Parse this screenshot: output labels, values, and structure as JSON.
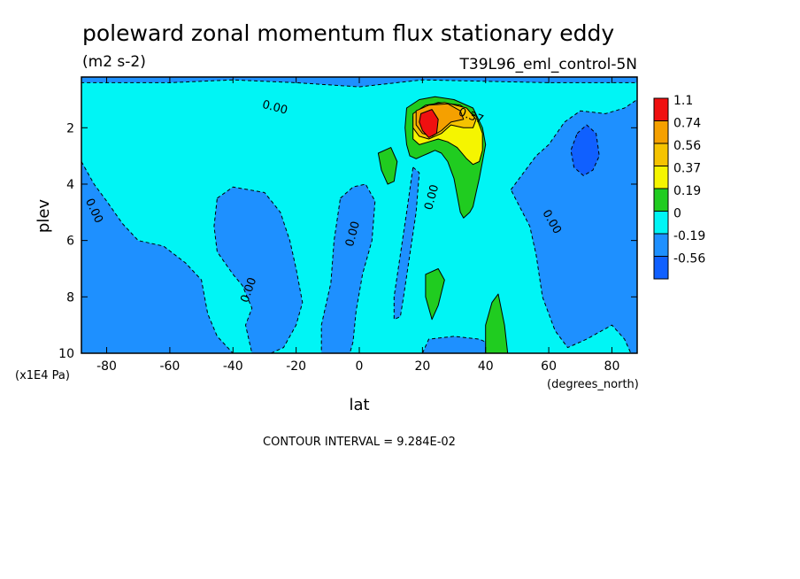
{
  "chart_data": {
    "type": "contour",
    "title": "poleward zonal momentum flux stationary eddy",
    "units": "(m2 s-2)",
    "experiment": "T39L96_eml_control-5N",
    "xlabel": "lat",
    "xunits": "(degrees_north)",
    "ylabel": "plev",
    "yunits": "(x1E4 Pa)",
    "xlim": [
      -88,
      88
    ],
    "ylim": [
      10,
      0.2
    ],
    "x_ticks": [
      {
        "value": -80,
        "label": "-80"
      },
      {
        "value": -60,
        "label": "-60"
      },
      {
        "value": -40,
        "label": "-40"
      },
      {
        "value": -20,
        "label": "-20"
      },
      {
        "value": 0,
        "label": "0"
      },
      {
        "value": 20,
        "label": "20"
      },
      {
        "value": 40,
        "label": "40"
      },
      {
        "value": 60,
        "label": "60"
      },
      {
        "value": 80,
        "label": "80"
      }
    ],
    "y_ticks": [
      {
        "value": 2,
        "label": "2"
      },
      {
        "value": 4,
        "label": "4"
      },
      {
        "value": 6,
        "label": "6"
      },
      {
        "value": 8,
        "label": "8"
      },
      {
        "value": 10,
        "label": "10"
      }
    ],
    "contour_interval_text": "CONTOUR INTERVAL = 9.284E-02",
    "levels": [
      {
        "label": "1.1",
        "color": "#f01010"
      },
      {
        "label": "0.74",
        "color": "#f5a000"
      },
      {
        "label": "0.56",
        "color": "#f5c300"
      },
      {
        "label": "0.37",
        "color": "#f5f500"
      },
      {
        "label": "0.19",
        "color": "#20cc20"
      },
      {
        "label": "0",
        "color": "#00f5f5"
      },
      {
        "label": "-0.19",
        "color": "#1e90ff"
      },
      {
        "label": "-0.56",
        "color": "#1060ff"
      }
    ],
    "fill_colors": {
      "below_min": "#1060ff",
      "neg_strong": "#1060ff",
      "neg": "#1e90ff",
      "zero": "#00f5f5",
      "pos1": "#20cc20",
      "pos2": "#f5f500",
      "pos3": "#f5c300",
      "pos4": "#f5a000",
      "max": "#f01010"
    },
    "regions": [
      {
        "kind": "neg",
        "pts": [
          [
            -88,
            0.2
          ],
          [
            88,
            0.2
          ],
          [
            88,
            0.4
          ],
          [
            60,
            0.4
          ],
          [
            40,
            0.35
          ],
          [
            20,
            0.3
          ],
          [
            0,
            0.55
          ],
          [
            -20,
            0.4
          ],
          [
            -40,
            0.3
          ],
          [
            -60,
            0.4
          ],
          [
            -88,
            0.4
          ]
        ]
      },
      {
        "kind": "neg",
        "pts": [
          [
            -88,
            3.2
          ],
          [
            -84,
            4.0
          ],
          [
            -80,
            4.6
          ],
          [
            -75,
            5.4
          ],
          [
            -70,
            6.0
          ],
          [
            -62,
            6.2
          ],
          [
            -55,
            6.8
          ],
          [
            -50,
            7.4
          ],
          [
            -48,
            8.6
          ],
          [
            -45,
            9.4
          ],
          [
            -40,
            10
          ],
          [
            -88,
            10
          ]
        ]
      },
      {
        "kind": "neg",
        "pts": [
          [
            -45,
            4.5
          ],
          [
            -40,
            4.1
          ],
          [
            -30,
            4.3
          ],
          [
            -25,
            5.0
          ],
          [
            -22,
            6.0
          ],
          [
            -20,
            7.0
          ],
          [
            -18,
            8.2
          ],
          [
            -20,
            9.0
          ],
          [
            -24,
            9.8
          ],
          [
            -28,
            10
          ],
          [
            -34,
            10
          ],
          [
            -36,
            9.0
          ],
          [
            -34,
            8.4
          ],
          [
            -37,
            7.6
          ],
          [
            -40,
            7.2
          ],
          [
            -45,
            6.4
          ],
          [
            -46,
            5.5
          ]
        ]
      },
      {
        "kind": "neg",
        "pts": [
          [
            -6,
            4.5
          ],
          [
            -2,
            4.1
          ],
          [
            2,
            4.0
          ],
          [
            5,
            4.6
          ],
          [
            4,
            6.0
          ],
          [
            1,
            7.2
          ],
          [
            -1,
            8.5
          ],
          [
            -2,
            9.6
          ],
          [
            -3,
            10
          ],
          [
            -12,
            10
          ],
          [
            -12,
            9.0
          ],
          [
            -9,
            7.5
          ],
          [
            -8,
            6.0
          ]
        ]
      },
      {
        "kind": "neg",
        "pts": [
          [
            17,
            3.4
          ],
          [
            19,
            3.6
          ],
          [
            18,
            5.0
          ],
          [
            16,
            6.5
          ],
          [
            14,
            8.0
          ],
          [
            13,
            8.7
          ],
          [
            11,
            8.8
          ],
          [
            11,
            8.0
          ],
          [
            13,
            6.5
          ],
          [
            15,
            5.0
          ]
        ]
      },
      {
        "kind": "neg",
        "pts": [
          [
            48,
            4.2
          ],
          [
            56,
            3.0
          ],
          [
            60,
            2.6
          ],
          [
            65,
            1.8
          ],
          [
            70,
            1.4
          ],
          [
            78,
            1.5
          ],
          [
            84,
            1.3
          ],
          [
            88,
            1.0
          ],
          [
            88,
            10
          ],
          [
            86,
            10
          ],
          [
            84,
            9.5
          ],
          [
            80,
            9.0
          ],
          [
            72,
            9.5
          ],
          [
            66,
            9.8
          ],
          [
            62,
            9.2
          ],
          [
            58,
            8.0
          ],
          [
            56,
            6.5
          ],
          [
            54,
            5.5
          ]
        ]
      },
      {
        "kind": "neg",
        "pts": [
          [
            20,
            10
          ],
          [
            22,
            9.5
          ],
          [
            30,
            9.4
          ],
          [
            38,
            9.5
          ],
          [
            44,
            9.8
          ],
          [
            46,
            10
          ]
        ]
      },
      {
        "kind": "neg_strong",
        "pts": [
          [
            69,
            2.2
          ],
          [
            72,
            1.9
          ],
          [
            75,
            2.2
          ],
          [
            76,
            3.0
          ],
          [
            74,
            3.5
          ],
          [
            71,
            3.7
          ],
          [
            68,
            3.4
          ],
          [
            67,
            2.8
          ]
        ]
      },
      {
        "kind": "pos1",
        "pts": [
          [
            15,
            1.3
          ],
          [
            19,
            1.0
          ],
          [
            24,
            0.9
          ],
          [
            30,
            1.0
          ],
          [
            36,
            1.3
          ],
          [
            39,
            2.0
          ],
          [
            40,
            2.6
          ],
          [
            39,
            3.2
          ],
          [
            38,
            3.8
          ],
          [
            37,
            4.3
          ],
          [
            36,
            4.8
          ],
          [
            35,
            5.0
          ],
          [
            33,
            5.2
          ],
          [
            32,
            5.0
          ],
          [
            31,
            4.4
          ],
          [
            30,
            3.8
          ],
          [
            28,
            3.2
          ],
          [
            26,
            2.9
          ],
          [
            24,
            2.8
          ],
          [
            22,
            2.9
          ],
          [
            20,
            3.0
          ],
          [
            18,
            3.1
          ],
          [
            16,
            3.0
          ],
          [
            15,
            2.6
          ],
          [
            14.5,
            2.0
          ]
        ]
      },
      {
        "kind": "pos1",
        "pts": [
          [
            6,
            2.9
          ],
          [
            10,
            2.7
          ],
          [
            12,
            3.2
          ],
          [
            11,
            3.9
          ],
          [
            9,
            4.0
          ],
          [
            7,
            3.5
          ]
        ]
      },
      {
        "kind": "pos1",
        "pts": [
          [
            21,
            7.2
          ],
          [
            25,
            7.0
          ],
          [
            27,
            7.4
          ],
          [
            25,
            8.3
          ],
          [
            23,
            8.8
          ],
          [
            21,
            8.0
          ]
        ]
      },
      {
        "kind": "pos1",
        "pts": [
          [
            40,
            9.0
          ],
          [
            42,
            8.2
          ],
          [
            44,
            7.9
          ],
          [
            46,
            9.0
          ],
          [
            47,
            10
          ],
          [
            40,
            10
          ]
        ]
      },
      {
        "kind": "pos2",
        "pts": [
          [
            17,
            1.6
          ],
          [
            20,
            1.3
          ],
          [
            25,
            1.1
          ],
          [
            32,
            1.2
          ],
          [
            37,
            1.6
          ],
          [
            39,
            2.2
          ],
          [
            39,
            2.8
          ],
          [
            38,
            3.2
          ],
          [
            36,
            3.3
          ],
          [
            34,
            3.1
          ],
          [
            31,
            2.7
          ],
          [
            28,
            2.5
          ],
          [
            25,
            2.4
          ],
          [
            22,
            2.5
          ],
          [
            19,
            2.6
          ],
          [
            17,
            2.4
          ]
        ]
      },
      {
        "kind": "pos3",
        "pts": [
          [
            17,
            1.5
          ],
          [
            21,
            1.2
          ],
          [
            27,
            1.1
          ],
          [
            34,
            1.3
          ],
          [
            37,
            1.7
          ],
          [
            36,
            2.0
          ],
          [
            33,
            2.0
          ],
          [
            29,
            1.9
          ],
          [
            26,
            2.2
          ],
          [
            22,
            2.4
          ],
          [
            19,
            2.3
          ],
          [
            17,
            2.0
          ]
        ]
      },
      {
        "kind": "pos4",
        "pts": [
          [
            18,
            1.4
          ],
          [
            22,
            1.2
          ],
          [
            28,
            1.15
          ],
          [
            32,
            1.4
          ],
          [
            33,
            1.7
          ],
          [
            29,
            1.8
          ],
          [
            26,
            2.1
          ],
          [
            23,
            2.3
          ],
          [
            20,
            2.2
          ],
          [
            18,
            1.9
          ]
        ]
      },
      {
        "kind": "max",
        "pts": [
          [
            19.5,
            1.5
          ],
          [
            23,
            1.35
          ],
          [
            25,
            1.7
          ],
          [
            24.5,
            2.2
          ],
          [
            22,
            2.35
          ],
          [
            20,
            2.1
          ],
          [
            19,
            1.8
          ]
        ]
      }
    ],
    "contour_labels": [
      {
        "text": "0.00",
        "lat": -27,
        "plev": 1.4,
        "rot": 15
      },
      {
        "text": "0.00",
        "lat": -85,
        "plev": 5.0,
        "rot": 65
      },
      {
        "text": "0.00",
        "lat": -34,
        "plev": 7.8,
        "rot": -70
      },
      {
        "text": "0.00",
        "lat": -1,
        "plev": 5.8,
        "rot": -75
      },
      {
        "text": "0.00",
        "lat": 24,
        "plev": 4.5,
        "rot": -75
      },
      {
        "text": "0.37",
        "lat": 35,
        "plev": 1.7,
        "rot": 20
      },
      {
        "text": "0.00",
        "lat": 60,
        "plev": 5.4,
        "rot": 60
      }
    ]
  }
}
